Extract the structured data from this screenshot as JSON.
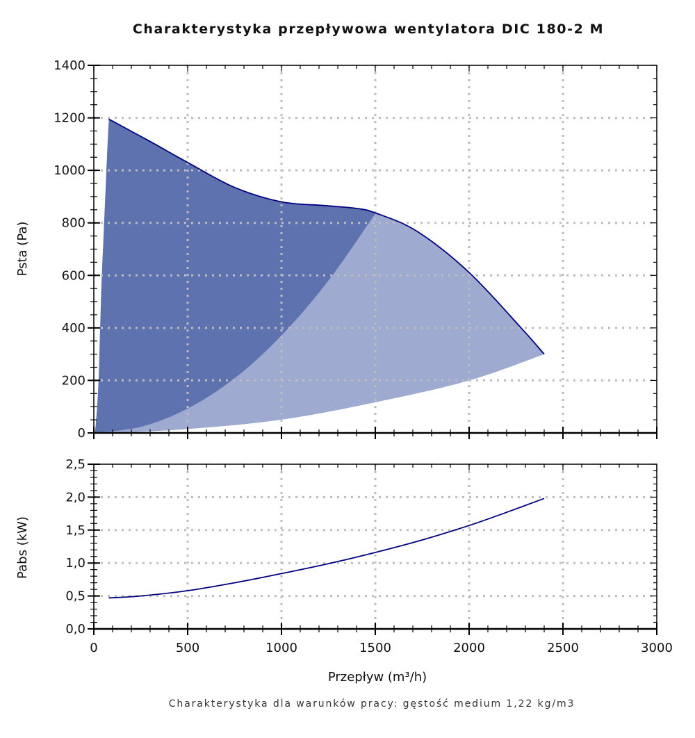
{
  "chart_data": [
    {
      "type": "area",
      "title": "Charakterystyka przepływowa wentylatora DIC 180-2 M",
      "xlabel": "Przepływ (m³/h)",
      "ylabel": "Psta (Pa)",
      "xlim": [
        0,
        3000
      ],
      "ylim": [
        0,
        1400
      ],
      "grid": true,
      "xticks": [
        "0",
        "500",
        "1000",
        "1500",
        "2000",
        "2500",
        "3000"
      ],
      "yticks": [
        "0",
        "200",
        "400",
        "600",
        "800",
        "1000",
        "1200",
        "1400"
      ],
      "colors": {
        "dark_area": "#5f72b0",
        "light_area": "#9eaad0",
        "line": "#000080",
        "grid": "#bdbdbd"
      },
      "fan_curve": [
        [
          80,
          1195
        ],
        [
          300,
          1110
        ],
        [
          500,
          1030
        ],
        [
          750,
          935
        ],
        [
          1000,
          880
        ],
        [
          1230,
          866
        ],
        [
          1400,
          855
        ],
        [
          1500,
          838
        ],
        [
          1722,
          768
        ],
        [
          2000,
          611
        ],
        [
          2278,
          399
        ],
        [
          2400,
          300
        ]
      ],
      "left_boundary": [
        [
          0,
          0
        ],
        [
          10,
          30
        ],
        [
          25,
          200
        ],
        [
          40,
          550
        ],
        [
          55,
          800
        ],
        [
          70,
          1050
        ],
        [
          80,
          1195
        ]
      ],
      "system_curve_low": [
        [
          80,
          0
        ],
        [
          500,
          15
        ],
        [
          1000,
          51
        ],
        [
          1500,
          117
        ],
        [
          2000,
          200
        ],
        [
          2400,
          300
        ]
      ],
      "system_curve_high": [
        [
          0,
          0
        ],
        [
          250,
          23
        ],
        [
          500,
          93
        ],
        [
          750,
          208
        ],
        [
          1000,
          371
        ],
        [
          1250,
          580
        ],
        [
          1500,
          835
        ]
      ]
    },
    {
      "type": "line",
      "xlabel": "Przepływ (m³/h)",
      "ylabel": "Pabs (kW)",
      "xlim": [
        0,
        3000
      ],
      "ylim": [
        0,
        2.5
      ],
      "grid": true,
      "yticks": [
        "0,0",
        "0,5",
        "1,0",
        "1,5",
        "2,0",
        "2,5"
      ],
      "colors": {
        "line": "#000080"
      },
      "x": [
        80,
        250,
        500,
        750,
        1000,
        1250,
        1500,
        1750,
        2000,
        2200,
        2400
      ],
      "values": [
        0.47,
        0.5,
        0.58,
        0.7,
        0.84,
        0.99,
        1.16,
        1.35,
        1.57,
        1.77,
        1.98
      ]
    }
  ],
  "footnote": "Charakterystyka dla warunków pracy: gęstość medium 1,22 kg/m3"
}
